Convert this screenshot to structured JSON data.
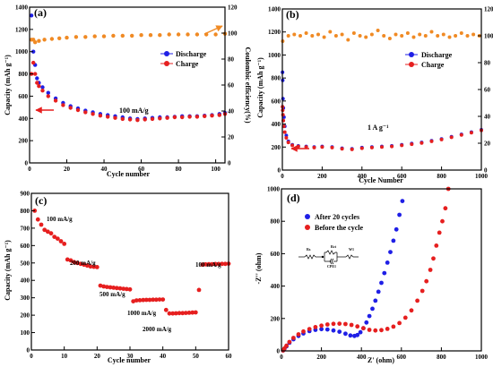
{
  "colors": {
    "discharge": "#1f1fe6",
    "charge": "#e61f1f",
    "efficiency": "#f08a24",
    "arrow_red": "#e61f1f",
    "arrow_orange": "#f08a24",
    "axis": "#000000"
  },
  "chart_data": [
    {
      "type": "scatter",
      "panel_label": "(a)",
      "xlabel": "Cycle number",
      "ylabel": "Capacity (mAh g⁻¹)",
      "y2label": "Coulombic efficiency(%)",
      "xlim": [
        0,
        105
      ],
      "ylim": [
        0,
        1400
      ],
      "y2lim": [
        0,
        120
      ],
      "xticks": [
        0,
        20,
        40,
        60,
        80,
        100
      ],
      "yticks": [
        0,
        200,
        400,
        600,
        800,
        1000,
        1200,
        1400
      ],
      "y2ticks": [
        0,
        20,
        40,
        60,
        80,
        100,
        120
      ],
      "legend": {
        "position": "top-right",
        "entries": [
          "Discharge",
          "Charge"
        ]
      },
      "annotations": [
        {
          "text": "100 mA/g"
        }
      ],
      "series": [
        {
          "name": "Discharge",
          "axis": "left",
          "x": [
            1,
            2,
            3,
            4,
            5,
            7,
            10,
            14,
            18,
            22,
            26,
            30,
            34,
            38,
            42,
            46,
            50,
            54,
            58,
            62,
            66,
            70,
            74,
            78,
            82,
            86,
            90,
            94,
            98,
            102,
            105
          ],
          "y": [
            1325,
            1000,
            880,
            760,
            720,
            680,
            630,
            580,
            540,
            510,
            490,
            470,
            455,
            440,
            430,
            420,
            410,
            400,
            395,
            400,
            405,
            410,
            410,
            415,
            420,
            420,
            420,
            425,
            430,
            440,
            450
          ]
        },
        {
          "name": "Charge",
          "axis": "left",
          "x": [
            1,
            2,
            3,
            4,
            5,
            7,
            10,
            14,
            18,
            22,
            26,
            30,
            34,
            38,
            42,
            46,
            50,
            54,
            58,
            62,
            66,
            70,
            74,
            78,
            82,
            86,
            90,
            94,
            98,
            102,
            105
          ],
          "y": [
            800,
            900,
            800,
            720,
            690,
            650,
            600,
            560,
            520,
            495,
            475,
            455,
            440,
            425,
            415,
            405,
            395,
            390,
            385,
            390,
            395,
            400,
            405,
            410,
            410,
            415,
            415,
            420,
            425,
            430,
            440
          ]
        },
        {
          "name": "Coulombic efficiency",
          "axis": "right",
          "x": [
            1,
            2,
            3,
            5,
            8,
            12,
            16,
            20,
            25,
            30,
            35,
            40,
            45,
            50,
            55,
            60,
            65,
            70,
            75,
            80,
            85,
            90,
            95,
            100,
            105
          ],
          "y": [
            95,
            95,
            93,
            94,
            95,
            95.5,
            96,
            96.5,
            97,
            97,
            97.5,
            97.5,
            98,
            98,
            98,
            98.5,
            98.5,
            98.5,
            99,
            99,
            99,
            99,
            99,
            99,
            99.5
          ]
        }
      ]
    },
    {
      "type": "scatter",
      "panel_label": "(b)",
      "xlabel": "Cycle Number",
      "ylabel": "Capacity (mAh g⁻¹)",
      "xlim": [
        0,
        1000
      ],
      "ylim": [
        0,
        1400
      ],
      "y2lim": [
        0,
        120
      ],
      "xticks": [
        0,
        200,
        400,
        600,
        800,
        1000
      ],
      "yticks": [
        0,
        200,
        400,
        600,
        800,
        1000,
        1200,
        1400
      ],
      "y2ticks": [
        0,
        20,
        40,
        60,
        80,
        100,
        120
      ],
      "legend": {
        "position": "top-right",
        "entries": [
          "Discharge",
          "Charge"
        ]
      },
      "annotations": [
        {
          "text": "1 A g⁻¹"
        }
      ],
      "series": [
        {
          "name": "Discharge",
          "axis": "left",
          "x": [
            1,
            2,
            3,
            5,
            8,
            12,
            20,
            30,
            50,
            80,
            120,
            160,
            200,
            250,
            300,
            350,
            400,
            450,
            500,
            550,
            600,
            650,
            700,
            750,
            800,
            850,
            900,
            950,
            1000
          ],
          "y": [
            850,
            780,
            620,
            540,
            460,
            380,
            300,
            250,
            220,
            210,
            205,
            200,
            205,
            200,
            190,
            185,
            195,
            200,
            205,
            210,
            220,
            230,
            240,
            255,
            270,
            290,
            310,
            330,
            350
          ]
        },
        {
          "name": "Charge",
          "axis": "left",
          "x": [
            1,
            2,
            3,
            5,
            8,
            12,
            20,
            30,
            50,
            80,
            120,
            160,
            200,
            250,
            300,
            350,
            400,
            450,
            500,
            550,
            600,
            650,
            700,
            750,
            800,
            850,
            900,
            950,
            1000
          ],
          "y": [
            550,
            520,
            480,
            430,
            380,
            330,
            280,
            240,
            215,
            205,
            200,
            195,
            200,
            195,
            185,
            180,
            190,
            195,
            200,
            205,
            215,
            225,
            235,
            250,
            265,
            285,
            305,
            325,
            345
          ]
        },
        {
          "name": "Coulombic efficiency",
          "axis": "right",
          "x": [
            2,
            30,
            60,
            90,
            120,
            150,
            180,
            210,
            240,
            270,
            300,
            330,
            360,
            390,
            420,
            450,
            480,
            510,
            540,
            570,
            600,
            630,
            660,
            690,
            720,
            750,
            780,
            810,
            840,
            870,
            900,
            930,
            960,
            990
          ],
          "y": [
            96,
            100,
            101,
            100,
            102,
            100,
            101,
            99,
            103,
            100,
            101,
            97,
            102,
            100,
            99,
            101,
            104,
            100,
            98,
            101,
            100,
            102,
            99,
            101,
            100,
            103,
            100,
            101,
            99,
            100,
            102,
            100,
            101,
            100
          ]
        }
      ]
    },
    {
      "type": "scatter",
      "panel_label": "(c)",
      "xlabel": "Cycle number",
      "ylabel": "Capacity (mAh g⁻¹)",
      "xlim": [
        0,
        60
      ],
      "ylim": [
        0,
        900
      ],
      "xticks": [
        0,
        10,
        20,
        30,
        40,
        50,
        60
      ],
      "yticks": [
        0,
        100,
        200,
        300,
        400,
        500,
        600,
        700,
        800,
        900
      ],
      "annotations": [
        {
          "text": "100 mA/g",
          "x": 5,
          "y": 720
        },
        {
          "text": "200 mA/g",
          "x": 15,
          "y": 525
        },
        {
          "text": "500 mA/g",
          "x": 25,
          "y": 375
        },
        {
          "text": "1000 mA/g",
          "x": 36,
          "y": 300
        },
        {
          "text": "2000 mA/g",
          "x": 44,
          "y": 225
        },
        {
          "text": "100 mA/g",
          "x": 56,
          "y": 505
        }
      ],
      "series": [
        {
          "name": "Rate capability",
          "axis": "left",
          "x": [
            1,
            2,
            3,
            4,
            5,
            6,
            7,
            8,
            9,
            10,
            11,
            12,
            13,
            14,
            15,
            16,
            17,
            18,
            19,
            20,
            21,
            22,
            23,
            24,
            25,
            26,
            27,
            28,
            29,
            30,
            31,
            32,
            33,
            34,
            35,
            36,
            37,
            38,
            39,
            40,
            41,
            42,
            43,
            44,
            45,
            46,
            47,
            48,
            49,
            50,
            51,
            52,
            53,
            54,
            55,
            56,
            57,
            58,
            59,
            60
          ],
          "y": [
            800,
            750,
            720,
            690,
            680,
            670,
            650,
            640,
            625,
            610,
            520,
            515,
            505,
            500,
            495,
            490,
            485,
            480,
            478,
            476,
            370,
            365,
            362,
            360,
            358,
            356,
            354,
            352,
            350,
            348,
            280,
            285,
            286,
            287,
            288,
            288,
            289,
            289,
            290,
            290,
            230,
            210,
            210,
            211,
            212,
            212,
            213,
            214,
            215,
            216,
            345,
            490,
            492,
            493,
            493,
            494,
            494,
            495,
            495,
            496
          ]
        }
      ]
    },
    {
      "type": "scatter",
      "panel_label": "(d)",
      "xlabel": "Z' (ohm)",
      "ylabel": "-Z'' (ohm)",
      "xlim": [
        0,
        1000
      ],
      "ylim": [
        0,
        1000
      ],
      "xticks": [
        0,
        200,
        400,
        600,
        800,
        1000
      ],
      "yticks": [
        0,
        200,
        400,
        600,
        800,
        1000
      ],
      "legend": {
        "position": "top-left",
        "entries": [
          "After 20 cycles",
          "Before the cycle"
        ]
      },
      "inset": {
        "labels": [
          "Rs",
          "Rct",
          "CPE1",
          "W1"
        ]
      },
      "series": [
        {
          "name": "After 20 cycles",
          "axis": "left",
          "x": [
            8,
            15,
            25,
            40,
            60,
            85,
            110,
            140,
            170,
            200,
            230,
            260,
            290,
            320,
            345,
            365,
            380,
            395,
            410,
            425,
            440,
            455,
            470,
            485,
            500,
            515,
            530,
            545,
            560,
            575,
            590,
            605
          ],
          "y": [
            3,
            12,
            28,
            50,
            72,
            92,
            108,
            122,
            130,
            134,
            132,
            126,
            118,
            106,
            95,
            92,
            98,
            115,
            140,
            175,
            215,
            260,
            310,
            365,
            420,
            480,
            545,
            610,
            680,
            750,
            840,
            925
          ]
        },
        {
          "name": "Before the cycle",
          "axis": "left",
          "x": [
            8,
            15,
            25,
            40,
            60,
            85,
            110,
            140,
            170,
            200,
            230,
            260,
            290,
            320,
            350,
            380,
            410,
            440,
            470,
            500,
            530,
            560,
            590,
            620,
            650,
            680,
            705,
            725,
            745,
            760,
            775,
            790,
            805,
            820,
            835
          ],
          "y": [
            3,
            15,
            32,
            55,
            80,
            102,
            120,
            135,
            147,
            156,
            163,
            167,
            168,
            166,
            160,
            151,
            140,
            130,
            126,
            128,
            136,
            150,
            172,
            205,
            250,
            310,
            370,
            430,
            500,
            570,
            650,
            730,
            800,
            880,
            1000
          ]
        }
      ]
    }
  ]
}
